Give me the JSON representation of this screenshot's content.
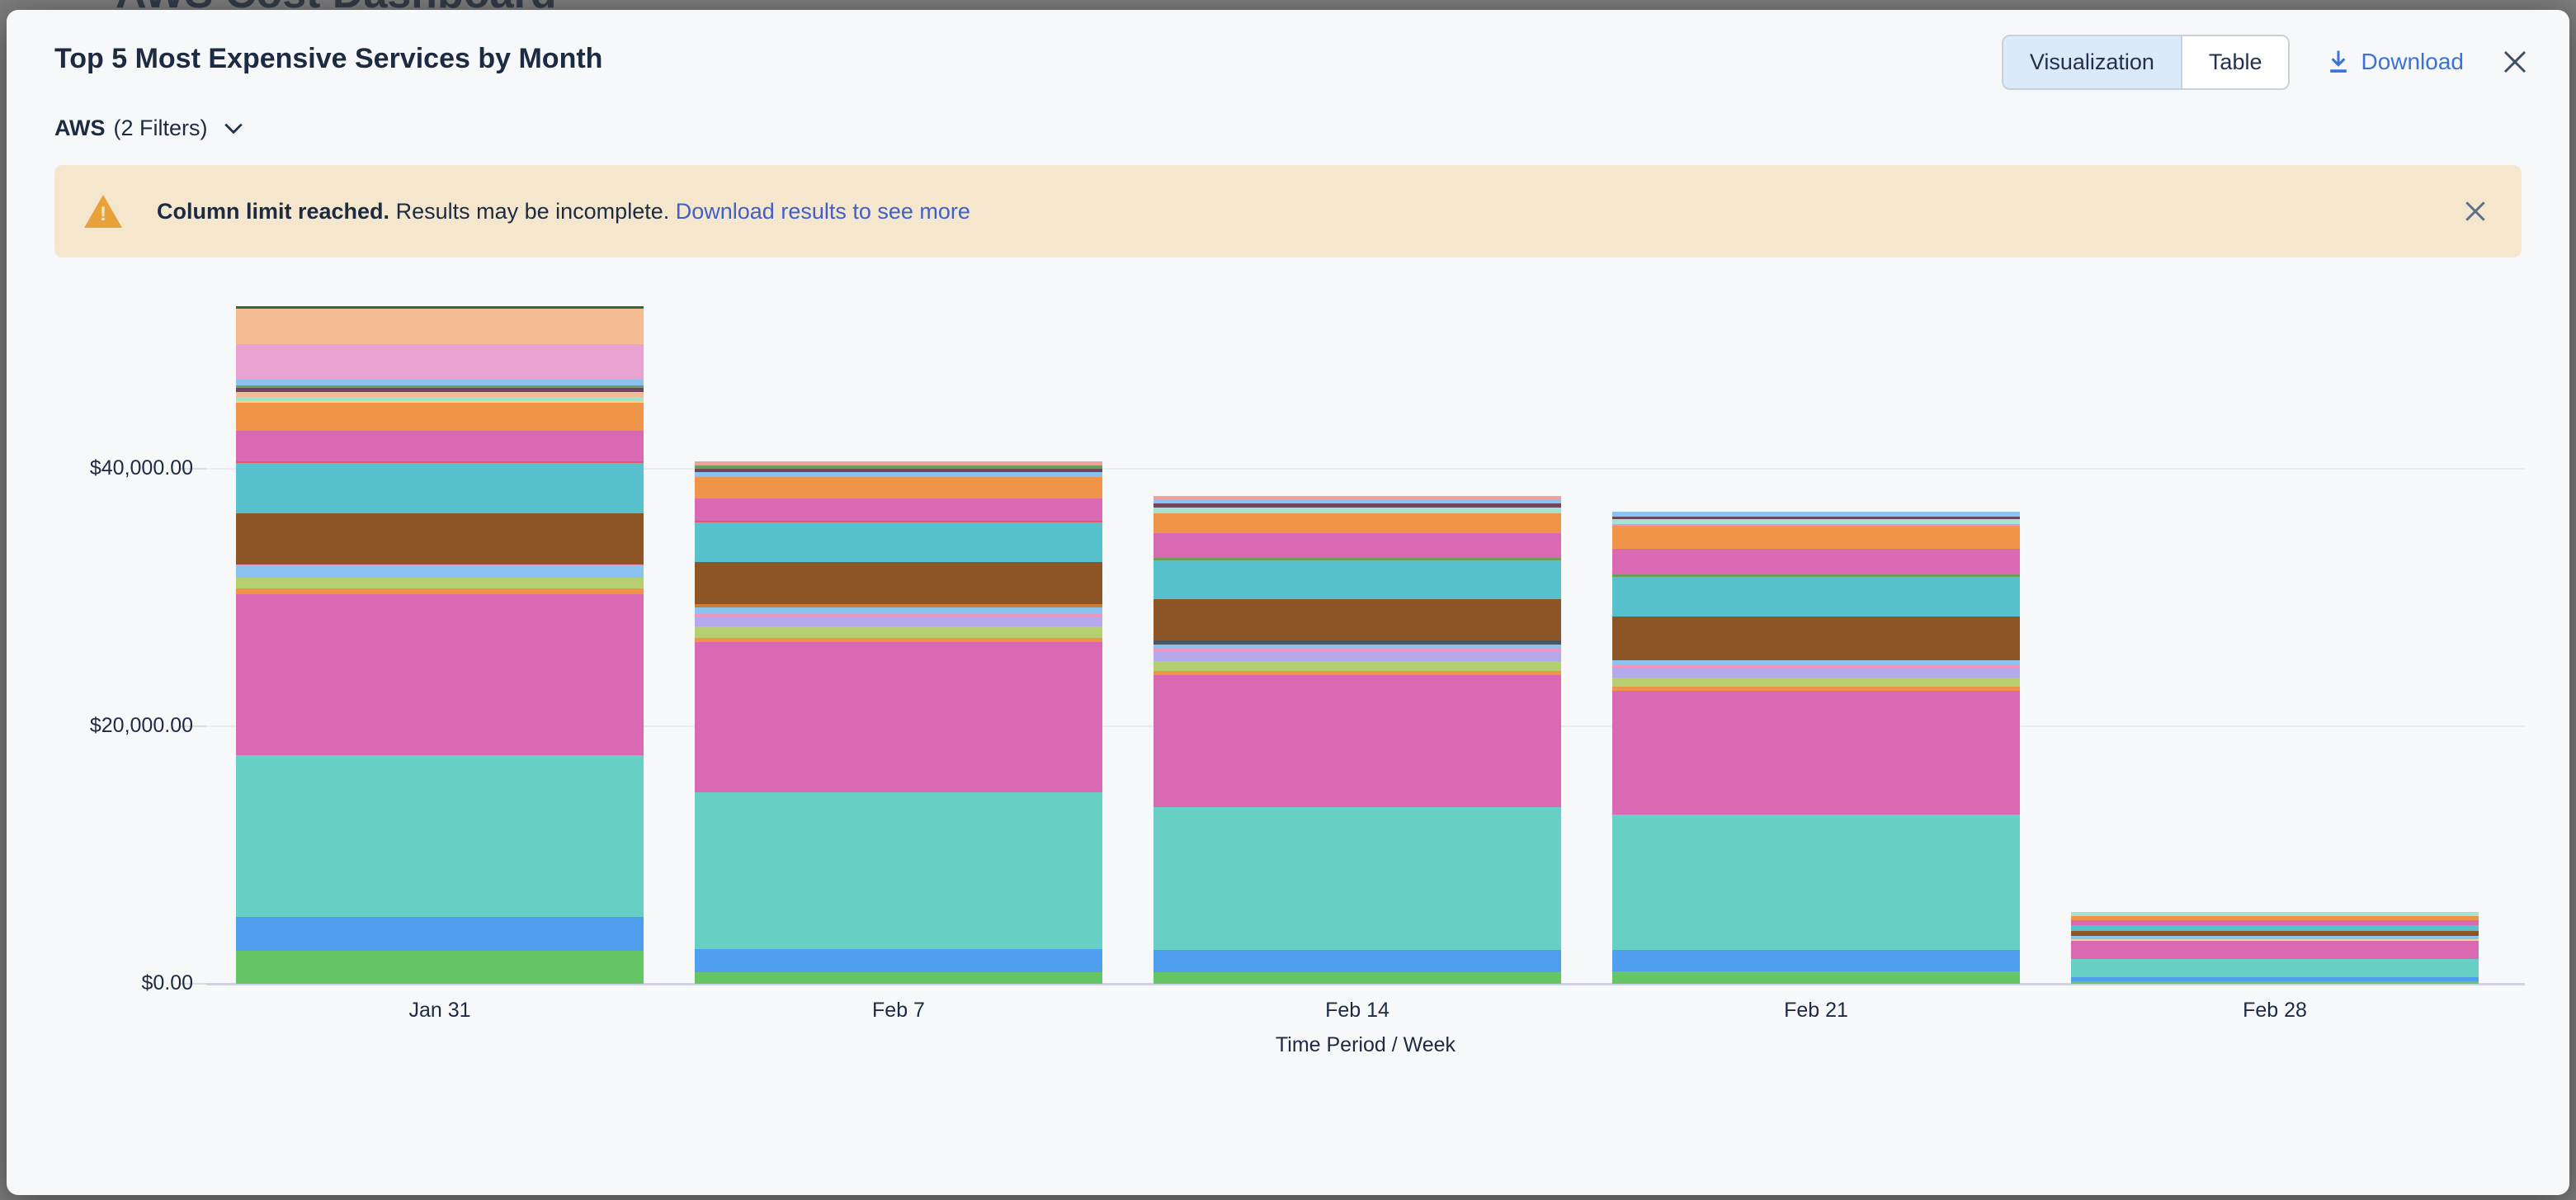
{
  "backdrop": {
    "heading": "AWS Cost Dashboard"
  },
  "modal": {
    "title": "Top 5 Most Expensive Services by Month",
    "view_toggle": {
      "options": [
        "Visualization",
        "Table"
      ],
      "selected": "Visualization"
    },
    "download_label": "Download",
    "filter": {
      "scope": "AWS",
      "filters_label": "(2 Filters)"
    },
    "banner": {
      "bold_text": "Column limit reached.",
      "text": "Results may be incomplete.",
      "link_text": "Download results to see more",
      "icon_glyph": "!"
    },
    "colors": {
      "modal_bg": "#f7f8fa",
      "banner_bg": "#f4e7ce",
      "warning_orange": "#e9a23b",
      "link_blue": "#3a72d8",
      "banner_link_blue": "#3f5fc9",
      "text_dark": "#1c2a42",
      "selected_toggle_bg": "#dbe9f9"
    }
  },
  "chart_data": {
    "type": "stacked-bar",
    "title": "Top 5 Most Expensive Services by Month",
    "xlabel": "Time Period / Week",
    "ylabel": "",
    "ylim": [
      0,
      53000
    ],
    "grid": true,
    "legend": "none",
    "y_ticks": [
      {
        "value": 0,
        "label": "$0.00"
      },
      {
        "value": 20000,
        "label": "$20,000.00"
      },
      {
        "value": 40000,
        "label": "$40,000.00"
      }
    ],
    "categories": [
      "Jan 31",
      "Feb 7",
      "Feb 14",
      "Feb 21",
      "Feb 28"
    ],
    "bars": [
      {
        "category": "Jan 31",
        "total": 52650,
        "segments": [
          {
            "color": "#66c565",
            "value": 2570
          },
          {
            "color": "#4f9fee",
            "value": 2635
          },
          {
            "color": "#68cfc4",
            "value": 12540
          },
          {
            "color": "#d969b3",
            "value": 12475
          },
          {
            "color": "#ef9449",
            "value": 450
          },
          {
            "color": "#b5cf70",
            "value": 835
          },
          {
            "color": "#8ac2f0",
            "value": 900
          },
          {
            "color": "#f095bd",
            "value": 130
          },
          {
            "color": "#8e5627",
            "value": 3990
          },
          {
            "color": "#57c2ce",
            "value": 3920
          },
          {
            "color": "#e25c68",
            "value": 130
          },
          {
            "color": "#d969b3",
            "value": 2380
          },
          {
            "color": "#ef9449",
            "value": 2190
          },
          {
            "color": "#e9d98b",
            "value": 120
          },
          {
            "color": "#a3e3cf",
            "value": 320
          },
          {
            "color": "#f4bc92",
            "value": 385
          },
          {
            "color": "#6f4560",
            "value": 320
          },
          {
            "color": "#6ba157",
            "value": 190
          },
          {
            "color": "#8ac2f0",
            "value": 450
          },
          {
            "color": "#e7a2d2",
            "value": 2765
          },
          {
            "color": "#f4bc92",
            "value": 2765
          },
          {
            "color": "#2f6b33",
            "value": 190
          }
        ]
      },
      {
        "category": "Feb 7",
        "total": 40580,
        "segments": [
          {
            "color": "#66c565",
            "value": 900
          },
          {
            "color": "#4f9fee",
            "value": 1800
          },
          {
            "color": "#68cfc4",
            "value": 12150
          },
          {
            "color": "#d969b3",
            "value": 11700
          },
          {
            "color": "#ef9449",
            "value": 320
          },
          {
            "color": "#b5cf70",
            "value": 900
          },
          {
            "color": "#b4a9ec",
            "value": 710
          },
          {
            "color": "#f095bd",
            "value": 260
          },
          {
            "color": "#8ac2f0",
            "value": 510
          },
          {
            "color": "#cd7d3a",
            "value": 260
          },
          {
            "color": "#8e5627",
            "value": 3215
          },
          {
            "color": "#57c2ce",
            "value": 3090
          },
          {
            "color": "#e25c68",
            "value": 130
          },
          {
            "color": "#d969b3",
            "value": 1740
          },
          {
            "color": "#ef9449",
            "value": 1670
          },
          {
            "color": "#8ac2f0",
            "value": 385
          },
          {
            "color": "#6f4560",
            "value": 260
          },
          {
            "color": "#6ba157",
            "value": 260
          },
          {
            "color": "#efa09f",
            "value": 320
          }
        ]
      },
      {
        "category": "Feb 14",
        "total": 37880,
        "segments": [
          {
            "color": "#66c565",
            "value": 900
          },
          {
            "color": "#4f9fee",
            "value": 1740
          },
          {
            "color": "#68cfc4",
            "value": 11060
          },
          {
            "color": "#d969b3",
            "value": 10290
          },
          {
            "color": "#ef9449",
            "value": 320
          },
          {
            "color": "#b5cf70",
            "value": 770
          },
          {
            "color": "#b4a9ec",
            "value": 710
          },
          {
            "color": "#f095bd",
            "value": 260
          },
          {
            "color": "#8ac2f0",
            "value": 320
          },
          {
            "color": "#4c5662",
            "value": 260
          },
          {
            "color": "#8e5627",
            "value": 3215
          },
          {
            "color": "#57c2ce",
            "value": 3020
          },
          {
            "color": "#6ba157",
            "value": 190
          },
          {
            "color": "#d969b3",
            "value": 1930
          },
          {
            "color": "#ef9449",
            "value": 1575
          },
          {
            "color": "#a3e3cf",
            "value": 450
          },
          {
            "color": "#6f4560",
            "value": 290
          },
          {
            "color": "#8ac2f0",
            "value": 260
          },
          {
            "color": "#efa09f",
            "value": 320
          }
        ]
      },
      {
        "category": "Feb 21",
        "total": 36655,
        "segments": [
          {
            "color": "#66c565",
            "value": 965
          },
          {
            "color": "#4f9fee",
            "value": 1670
          },
          {
            "color": "#68cfc4",
            "value": 10480
          },
          {
            "color": "#d969b3",
            "value": 9645
          },
          {
            "color": "#ef9449",
            "value": 320
          },
          {
            "color": "#b5cf70",
            "value": 710
          },
          {
            "color": "#b4a9ec",
            "value": 710
          },
          {
            "color": "#f095bd",
            "value": 260
          },
          {
            "color": "#8ac2f0",
            "value": 385
          },
          {
            "color": "#8e5627",
            "value": 3345
          },
          {
            "color": "#57c2ce",
            "value": 3090
          },
          {
            "color": "#6ba157",
            "value": 190
          },
          {
            "color": "#d969b3",
            "value": 1990
          },
          {
            "color": "#ef9449",
            "value": 1800
          },
          {
            "color": "#f095bd",
            "value": 160
          },
          {
            "color": "#a3e3cf",
            "value": 355
          },
          {
            "color": "#6f4560",
            "value": 225
          },
          {
            "color": "#8ac2f0",
            "value": 355
          }
        ]
      },
      {
        "category": "Feb 28",
        "total": 5560,
        "segments": [
          {
            "color": "#66c565",
            "value": 190
          },
          {
            "color": "#4f9fee",
            "value": 320
          },
          {
            "color": "#68cfc4",
            "value": 1410
          },
          {
            "color": "#d969b3",
            "value": 1410
          },
          {
            "color": "#e9d98b",
            "value": 130
          },
          {
            "color": "#8ac2f0",
            "value": 230
          },
          {
            "color": "#8e5627",
            "value": 410
          },
          {
            "color": "#57c2ce",
            "value": 450
          },
          {
            "color": "#d969b3",
            "value": 385
          },
          {
            "color": "#ef9449",
            "value": 345
          },
          {
            "color": "#a3e3cf",
            "value": 280
          }
        ]
      }
    ]
  }
}
